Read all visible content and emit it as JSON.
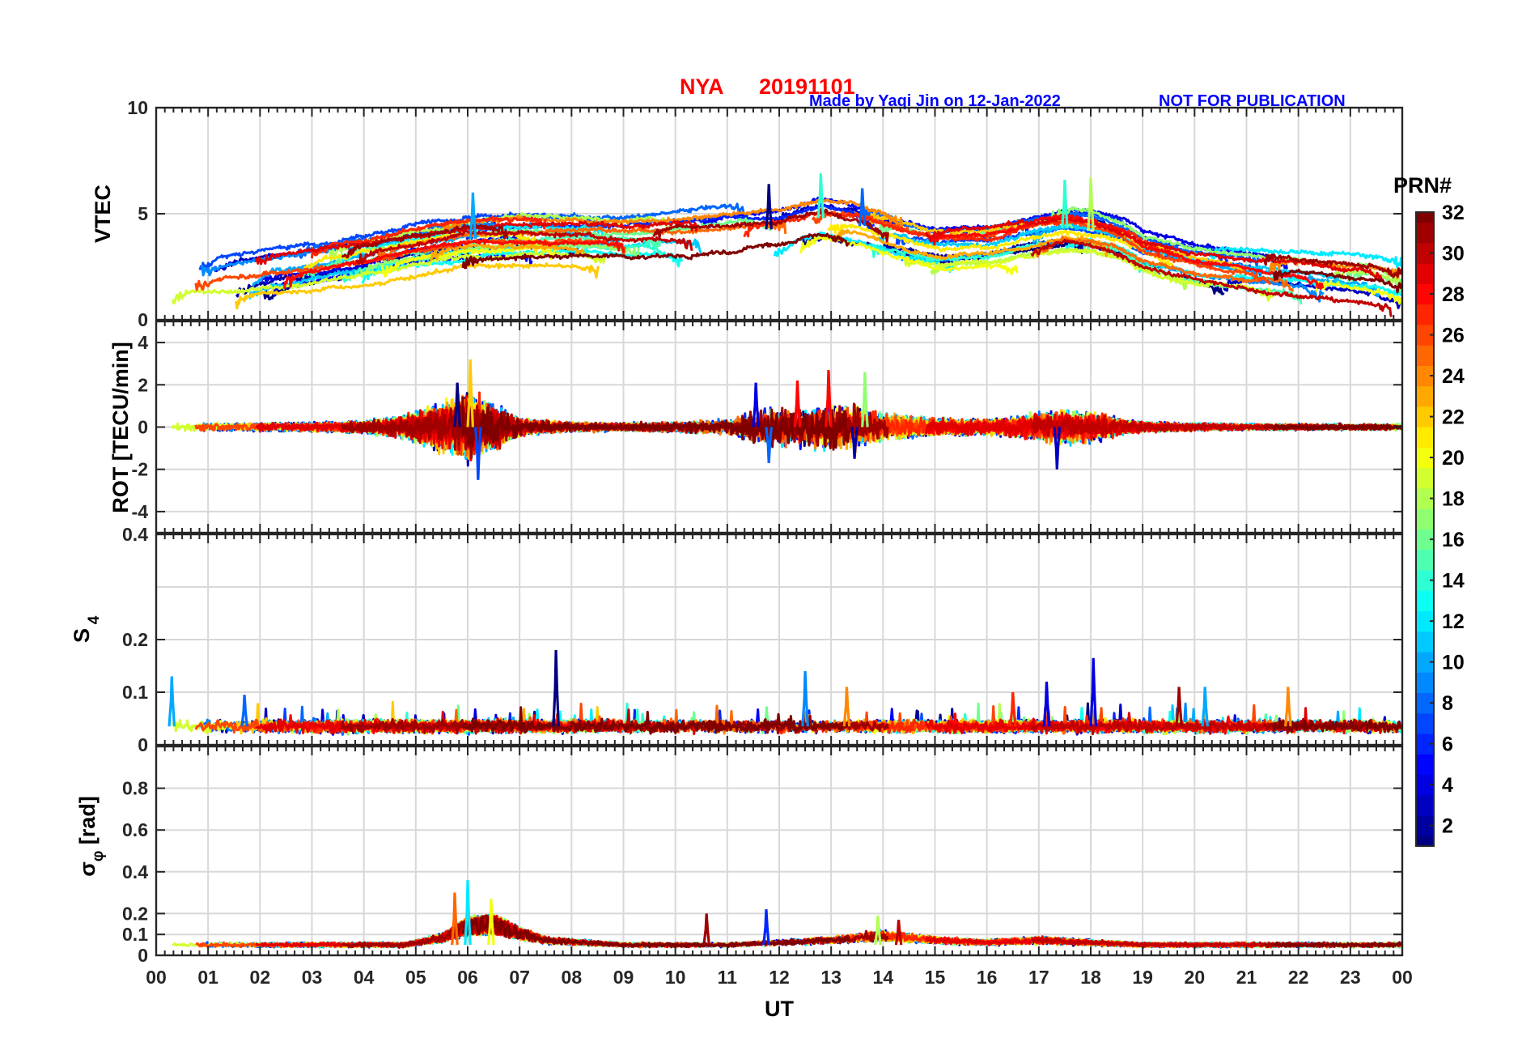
{
  "figure": {
    "title_station": "NYA",
    "title_date": "20191101",
    "credit": "Made by Yaqi Jin on 12-Jan-2022",
    "notice": "NOT FOR PUBLICATION"
  },
  "colorbar": {
    "title": "PRN#",
    "range": [
      1,
      32
    ],
    "ticks": [
      "2",
      "4",
      "6",
      "8",
      "10",
      "12",
      "14",
      "16",
      "18",
      "20",
      "22",
      "24",
      "26",
      "28",
      "30",
      "32"
    ],
    "colormap": "jet"
  },
  "chart_data": [
    {
      "type": "line",
      "panel": "vtec",
      "ylabel": "VTEC",
      "ylim": [
        0,
        10
      ],
      "yticks": [
        0,
        5,
        10
      ],
      "xlim": [
        0,
        24
      ],
      "grid": true,
      "envelope": {
        "x": [
          0,
          1,
          2,
          3,
          4,
          5,
          6,
          7,
          8,
          9,
          10,
          11,
          12,
          12.8,
          13.5,
          14,
          15,
          16,
          17,
          17.5,
          18,
          18.6,
          19,
          20,
          21,
          22,
          23,
          24
        ],
        "y": [
          1.8,
          1.9,
          2.2,
          2.5,
          2.9,
          3.4,
          3.8,
          3.9,
          3.9,
          3.8,
          3.9,
          4.1,
          4.3,
          4.8,
          4.5,
          4.1,
          3.5,
          3.6,
          4.1,
          4.3,
          4.2,
          3.8,
          3.2,
          2.6,
          2.3,
          2.1,
          1.8,
          1.6
        ]
      },
      "spread": 1.1,
      "spikes": [
        {
          "x": 12.8,
          "y": 6.9
        },
        {
          "x": 11.8,
          "y": 6.4
        },
        {
          "x": 17.5,
          "y": 6.6
        },
        {
          "x": 18.0,
          "y": 6.7
        },
        {
          "x": 6.1,
          "y": 6.0
        },
        {
          "x": 13.6,
          "y": 6.2
        }
      ]
    },
    {
      "type": "line",
      "panel": "rot",
      "ylabel": "ROT [TECU/min]",
      "ylim": [
        -5,
        5
      ],
      "yticks": [
        -4,
        -2,
        0,
        2,
        4
      ],
      "xlim": [
        0,
        24
      ],
      "grid": true,
      "amplitude": {
        "x": [
          0,
          1,
          2,
          3,
          4,
          4.8,
          5.5,
          6,
          6.5,
          7,
          8,
          9,
          10,
          11,
          11.8,
          12.5,
          13,
          13.5,
          14,
          15,
          16,
          17,
          17.5,
          18,
          18.5,
          19,
          20,
          21,
          22,
          23,
          24
        ],
        "y": [
          0.3,
          0.3,
          0.3,
          0.3,
          0.4,
          0.8,
          1.6,
          2.2,
          1.5,
          0.6,
          0.3,
          0.3,
          0.35,
          0.5,
          1.4,
          1.3,
          1.6,
          1.3,
          0.9,
          0.6,
          0.5,
          0.9,
          1.1,
          1.0,
          0.6,
          0.35,
          0.25,
          0.2,
          0.2,
          0.2,
          0.2
        ]
      },
      "spikes": [
        {
          "x": 6.05,
          "y": 3.2
        },
        {
          "x": 6.2,
          "y": -2.5
        },
        {
          "x": 5.8,
          "y": 2.1
        },
        {
          "x": 12.95,
          "y": 2.7
        },
        {
          "x": 13.65,
          "y": 2.6
        },
        {
          "x": 12.35,
          "y": 2.2
        },
        {
          "x": 11.55,
          "y": 2.1
        },
        {
          "x": 11.8,
          "y": -1.7
        },
        {
          "x": 17.35,
          "y": -2.0
        },
        {
          "x": 13.45,
          "y": -1.5
        }
      ]
    },
    {
      "type": "line",
      "panel": "s4",
      "ylabel": "S4",
      "ylim": [
        0,
        0.4
      ],
      "yticks": [
        0,
        0.1,
        0.2,
        0.4
      ],
      "xlim": [
        0,
        24
      ],
      "grid": true,
      "baseline": 0.035,
      "spread": 0.02,
      "spikes": [
        {
          "x": 0.3,
          "y": 0.13
        },
        {
          "x": 7.7,
          "y": 0.18
        },
        {
          "x": 12.5,
          "y": 0.14
        },
        {
          "x": 18.05,
          "y": 0.165
        },
        {
          "x": 17.15,
          "y": 0.12
        },
        {
          "x": 20.2,
          "y": 0.11
        },
        {
          "x": 13.3,
          "y": 0.11
        },
        {
          "x": 21.8,
          "y": 0.11
        },
        {
          "x": 1.7,
          "y": 0.095
        },
        {
          "x": 16.5,
          "y": 0.1
        },
        {
          "x": 19.7,
          "y": 0.11
        }
      ]
    },
    {
      "type": "line",
      "panel": "sigma_phi",
      "ylabel": "σφ [rad]",
      "ylim": [
        0,
        1
      ],
      "yticks": [
        0,
        0.1,
        0.2,
        0.4,
        0.6,
        0.8
      ],
      "xlim": [
        0,
        24
      ],
      "grid": true,
      "baseline": 0.05,
      "spread": 0.025,
      "hump": {
        "x": [
          0,
          4.8,
          5.5,
          6,
          6.5,
          7,
          7.5,
          9,
          11,
          12,
          13,
          14,
          15,
          16,
          17,
          18,
          19,
          24
        ],
        "y": [
          0,
          0,
          0.03,
          0.08,
          0.09,
          0.05,
          0.02,
          0,
          0,
          0.01,
          0.02,
          0.04,
          0.02,
          0.01,
          0.02,
          0.01,
          0,
          0
        ]
      },
      "spikes": [
        {
          "x": 6.0,
          "y": 0.36
        },
        {
          "x": 5.75,
          "y": 0.3
        },
        {
          "x": 6.45,
          "y": 0.27
        },
        {
          "x": 11.75,
          "y": 0.22
        },
        {
          "x": 10.6,
          "y": 0.2
        },
        {
          "x": 13.9,
          "y": 0.19
        },
        {
          "x": 14.3,
          "y": 0.17
        }
      ]
    }
  ],
  "x_axis": {
    "label": "UT",
    "ticks": [
      "00",
      "01",
      "02",
      "03",
      "04",
      "05",
      "06",
      "07",
      "08",
      "09",
      "10",
      "11",
      "12",
      "13",
      "14",
      "15",
      "16",
      "17",
      "18",
      "19",
      "20",
      "21",
      "22",
      "23",
      "00"
    ]
  }
}
